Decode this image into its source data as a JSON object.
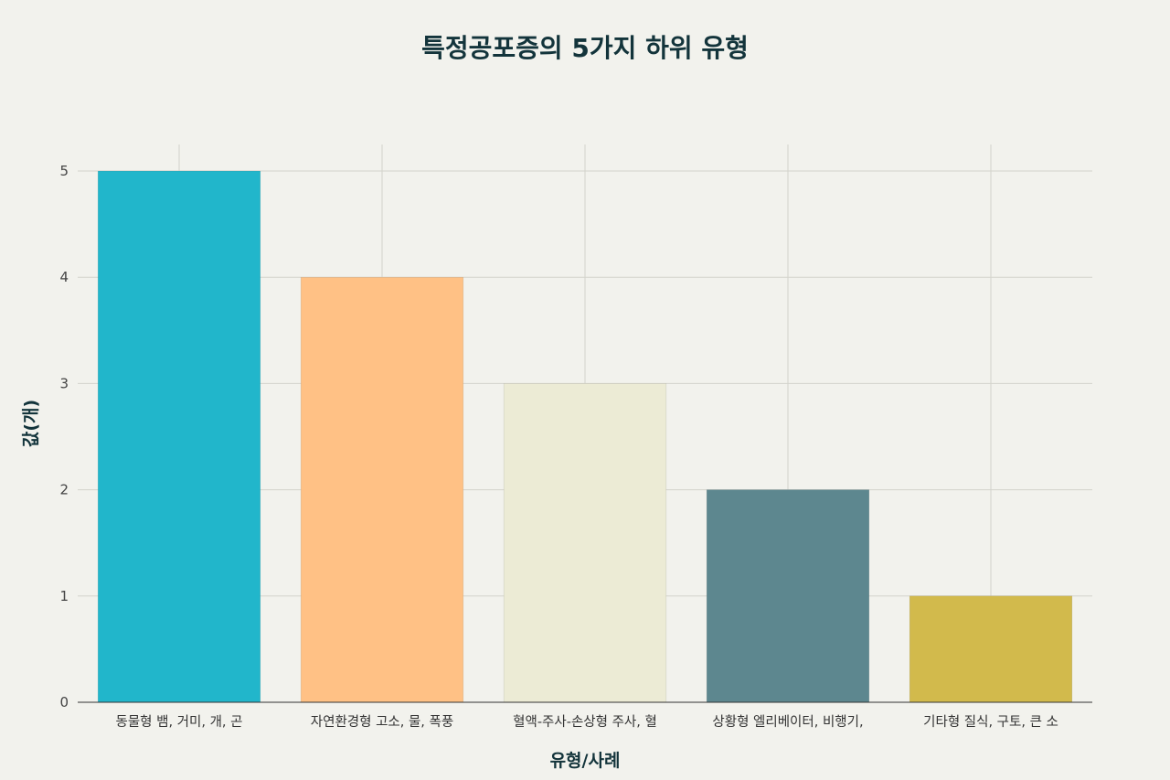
{
  "chart_data": {
    "type": "bar",
    "title": "특정공포증의 5가지 하위 유형",
    "xlabel": "유형/사례",
    "ylabel": "값(개)",
    "categories": [
      "동물형 뱀, 거미, 개, 곤",
      "자연환경형 고소, 물, 폭풍",
      "혈액-주사-손상형 주사, 혈",
      "상황형 엘리베이터, 비행기,",
      "기타형 질식, 구토, 큰 소"
    ],
    "values": [
      5,
      4,
      3,
      2,
      1
    ],
    "colors": [
      "#21b6cb",
      "#ffc185",
      "#ecebd5",
      "#5d878f",
      "#d2ba4c"
    ],
    "ylim": [
      0,
      5.25
    ],
    "yticks": [
      "0",
      "1",
      "2",
      "3",
      "4",
      "5"
    ],
    "grid": true,
    "legend": "none"
  }
}
